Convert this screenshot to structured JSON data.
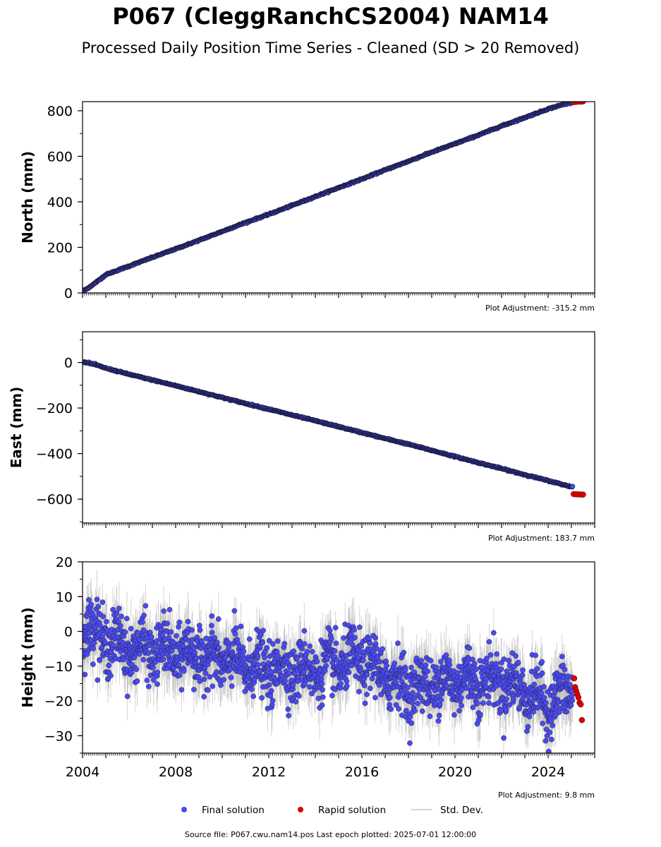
{
  "title": "P067 (CleggRanchCS2004) NAM14",
  "subtitle": "Processed Daily Position Time Series - Cleaned (SD > 20 Removed)",
  "legend": {
    "final": "Final solution",
    "rapid": "Rapid solution",
    "std": "Std. Dev."
  },
  "footer": "Source file: P067.cwu.nam14.pos  Last epoch plotted: 2025-07-01 12:00:00",
  "colors": {
    "final": "#4a4af0",
    "rapid": "#e00000",
    "std": "#b0b0b0"
  },
  "chart_data": [
    {
      "type": "scatter",
      "panel": "north",
      "ylabel": "North (mm)",
      "adjustment": "Plot Adjustment: -315.2 mm",
      "xlim": [
        2004.0,
        2026.0
      ],
      "ylim": [
        0,
        840
      ],
      "yticks": [
        0,
        200,
        400,
        600,
        800
      ],
      "ytick_labels": [
        "0",
        "200",
        "400",
        "600",
        "800"
      ],
      "series": [
        {
          "name": "Final solution",
          "x": [
            2004.1,
            2004.5,
            2005,
            2006,
            2007,
            2008,
            2009,
            2010,
            2011,
            2012,
            2013,
            2014,
            2015,
            2016,
            2017,
            2018,
            2019,
            2020,
            2021,
            2022,
            2023,
            2024,
            2025.0
          ],
          "y": [
            12,
            40,
            80,
            118,
            156,
            193,
            231,
            270,
            309,
            345,
            384,
            423,
            462,
            500,
            540,
            578,
            618,
            655,
            693,
            733,
            770,
            808,
            838
          ]
        },
        {
          "name": "Rapid solution",
          "x": [
            2025.1,
            2025.2,
            2025.3,
            2025.4,
            2025.5
          ],
          "y": [
            838,
            839,
            840,
            840,
            841
          ]
        }
      ]
    },
    {
      "type": "scatter",
      "panel": "east",
      "ylabel": "East (mm)",
      "adjustment": "Plot Adjustment: 183.7 mm",
      "xlim": [
        2004.0,
        2026.0
      ],
      "ylim": [
        -705,
        135
      ],
      "yticks": [
        0,
        -200,
        -400,
        -600
      ],
      "ytick_labels": [
        "0",
        "−200",
        "−400",
        "−600"
      ],
      "series": [
        {
          "name": "Final solution",
          "x": [
            2004.1,
            2004.5,
            2005,
            2006,
            2007,
            2008,
            2009,
            2010,
            2011,
            2012,
            2013,
            2014,
            2015,
            2016,
            2017,
            2018,
            2019,
            2020,
            2021,
            2022,
            2023,
            2024,
            2025.0
          ],
          "y": [
            2,
            -8,
            -25,
            -52,
            -77,
            -102,
            -128,
            -154,
            -180,
            -205,
            -231,
            -256,
            -282,
            -308,
            -334,
            -359,
            -386,
            -413,
            -440,
            -466,
            -493,
            -519,
            -546
          ]
        },
        {
          "name": "Rapid solution",
          "x": [
            2025.1,
            2025.2,
            2025.3,
            2025.4,
            2025.5
          ],
          "y": [
            -578,
            -579,
            -579,
            -580,
            -580
          ]
        }
      ]
    },
    {
      "type": "scatter",
      "panel": "height",
      "ylabel": "Height (mm)",
      "adjustment": "Plot Adjustment: 9.8 mm",
      "xlim": [
        2004.0,
        2026.0
      ],
      "ylim": [
        -35,
        20
      ],
      "yticks": [
        20,
        10,
        0,
        -10,
        -20,
        -30
      ],
      "ytick_labels": [
        "20",
        "10",
        "0",
        "−10",
        "−20",
        "−30"
      ],
      "xticks": [
        2004,
        2008,
        2012,
        2016,
        2020,
        2024
      ],
      "xtick_labels": [
        "2004",
        "2008",
        "2012",
        "2016",
        "2020",
        "2024"
      ],
      "series": [
        {
          "name": "Final solution",
          "trend_x": [
            2004,
            2005,
            2006,
            2008,
            2010,
            2012,
            2014,
            2016,
            2017,
            2018,
            2019,
            2020,
            2022,
            2023,
            2024,
            2025.0
          ],
          "trend_y": [
            2,
            -2,
            -5,
            -6,
            -8,
            -11,
            -11,
            -8,
            -13,
            -16,
            -15,
            -14,
            -14,
            -17,
            -21,
            -17
          ],
          "noise_sd": 5.5
        },
        {
          "name": "Rapid solution",
          "x": [
            2025.12,
            2025.16,
            2025.2,
            2025.25,
            2025.3,
            2025.35,
            2025.4,
            2025.45
          ],
          "y": [
            -13.5,
            -16,
            -17,
            -18,
            -19,
            -20.5,
            -21,
            -25.5
          ]
        }
      ]
    }
  ]
}
